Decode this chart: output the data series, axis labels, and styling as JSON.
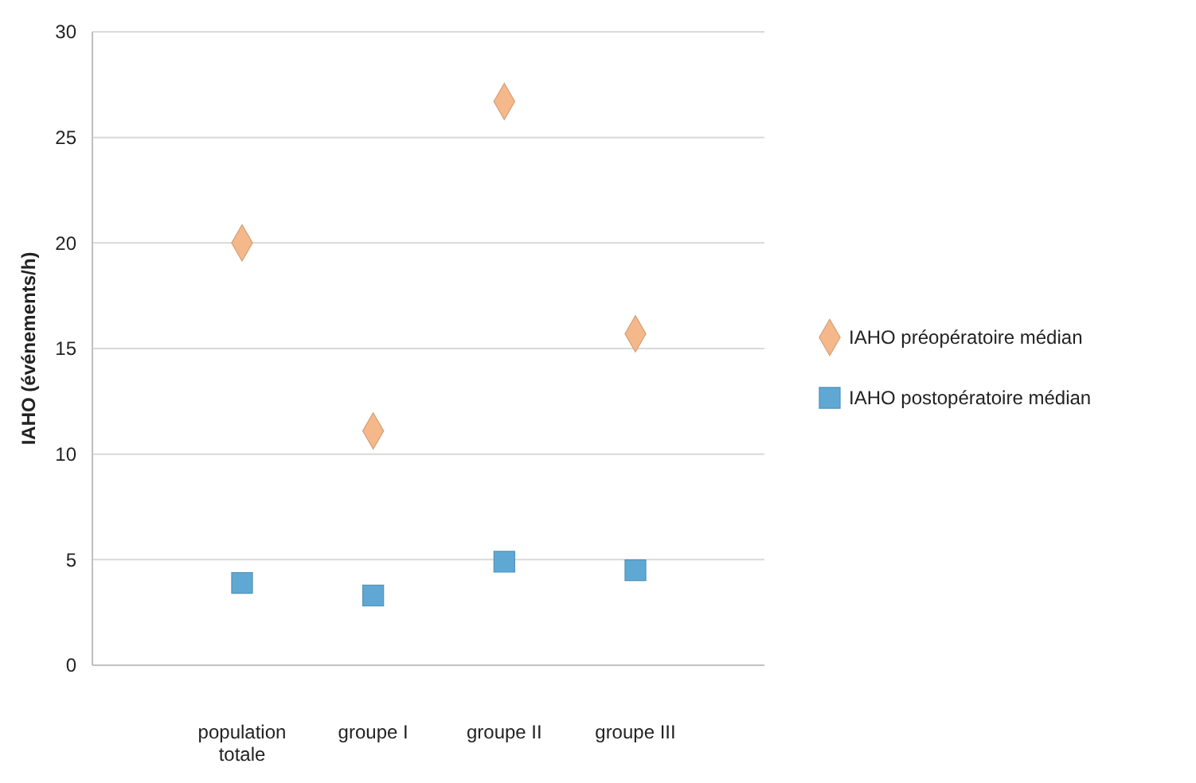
{
  "chart_data": {
    "type": "scatter",
    "ylabel": "IAHO (événements/h)",
    "categories": [
      "population totale",
      "groupe I",
      "groupe II",
      "groupe III"
    ],
    "ylim": [
      0,
      30
    ],
    "yticks": [
      0,
      5,
      10,
      15,
      20,
      25,
      30
    ],
    "grid": "y",
    "legend": "right",
    "series": [
      {
        "name": "IAHO préopératoire médian",
        "color": "#f5b88a",
        "marker": "diamond",
        "values": [
          20,
          11.1,
          26.7,
          15.7
        ]
      },
      {
        "name": "IAHO postopératoire médian",
        "color": "#5fa8d3",
        "marker": "square",
        "values": [
          3.9,
          3.3,
          4.9,
          4.5
        ]
      }
    ]
  }
}
